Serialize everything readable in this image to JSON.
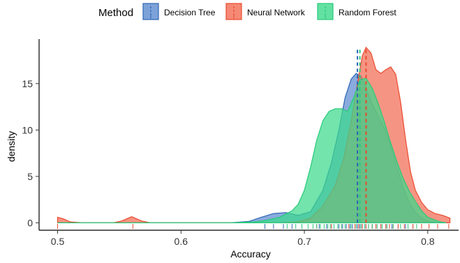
{
  "chart_data": {
    "type": "area",
    "subtype": "density",
    "title": "",
    "xlabel": "Accuracy",
    "ylabel": "density",
    "xlim": [
      0.485,
      0.825
    ],
    "ylim": [
      -0.8,
      19.8
    ],
    "x_ticks": [
      0.5,
      0.6,
      0.7,
      0.8
    ],
    "x_tick_labels": [
      "0.5",
      "0.6",
      "0.7",
      "0.8"
    ],
    "y_ticks": [
      0,
      5,
      10,
      15
    ],
    "y_tick_labels": [
      "0",
      "5",
      "10",
      "15"
    ],
    "grid": false,
    "legend": {
      "title": "Method",
      "position": "top",
      "entries": [
        "Decision Tree",
        "Neural Network",
        "Random Forest"
      ]
    },
    "series": [
      {
        "name": "Decision Tree",
        "fill": "#5b8bd0",
        "stroke": "#2f65b4",
        "mean": 0.743,
        "points": [
          [
            0.5,
            0
          ],
          [
            0.6,
            0
          ],
          [
            0.64,
            0
          ],
          [
            0.655,
            0.15
          ],
          [
            0.665,
            0.6
          ],
          [
            0.675,
            1.0
          ],
          [
            0.685,
            1.1
          ],
          [
            0.695,
            0.8
          ],
          [
            0.705,
            1.2
          ],
          [
            0.715,
            3.5
          ],
          [
            0.722,
            6.5
          ],
          [
            0.728,
            10.0
          ],
          [
            0.733,
            13.5
          ],
          [
            0.738,
            15.5
          ],
          [
            0.742,
            16.1
          ],
          [
            0.746,
            15.8
          ],
          [
            0.75,
            14.5
          ],
          [
            0.755,
            12.8
          ],
          [
            0.76,
            11.5
          ],
          [
            0.765,
            10.2
          ],
          [
            0.77,
            8.3
          ],
          [
            0.775,
            6.0
          ],
          [
            0.78,
            3.8
          ],
          [
            0.785,
            2.2
          ],
          [
            0.79,
            1.1
          ],
          [
            0.795,
            0.5
          ],
          [
            0.8,
            0.15
          ],
          [
            0.81,
            0
          ]
        ]
      },
      {
        "name": "Neural Network",
        "fill": "#f26b53",
        "stroke": "#ea4a2e",
        "mean": 0.75,
        "points": [
          [
            0.5,
            0.6
          ],
          [
            0.505,
            0.4
          ],
          [
            0.51,
            0.1
          ],
          [
            0.52,
            0
          ],
          [
            0.545,
            0
          ],
          [
            0.552,
            0.2
          ],
          [
            0.56,
            0.65
          ],
          [
            0.568,
            0.2
          ],
          [
            0.575,
            0
          ],
          [
            0.68,
            0
          ],
          [
            0.695,
            0.1
          ],
          [
            0.705,
            0.5
          ],
          [
            0.715,
            1.8
          ],
          [
            0.725,
            4.0
          ],
          [
            0.732,
            7.0
          ],
          [
            0.738,
            11.0
          ],
          [
            0.743,
            15.0
          ],
          [
            0.747,
            18.0
          ],
          [
            0.75,
            18.9
          ],
          [
            0.754,
            18.3
          ],
          [
            0.758,
            16.5
          ],
          [
            0.762,
            16.1
          ],
          [
            0.766,
            16.5
          ],
          [
            0.77,
            16.8
          ],
          [
            0.774,
            16.0
          ],
          [
            0.778,
            13.0
          ],
          [
            0.782,
            9.0
          ],
          [
            0.786,
            5.5
          ],
          [
            0.79,
            3.5
          ],
          [
            0.795,
            2.2
          ],
          [
            0.8,
            1.4
          ],
          [
            0.806,
            1.0
          ],
          [
            0.812,
            0.8
          ],
          [
            0.818,
            0.5
          ]
        ]
      },
      {
        "name": "Random Forest",
        "fill": "#3cd98c",
        "stroke": "#29c97a",
        "mean": 0.745,
        "points": [
          [
            0.5,
            0
          ],
          [
            0.64,
            0
          ],
          [
            0.66,
            0.1
          ],
          [
            0.67,
            0.3
          ],
          [
            0.68,
            0.6
          ],
          [
            0.69,
            1.3
          ],
          [
            0.695,
            2.0
          ],
          [
            0.7,
            3.5
          ],
          [
            0.705,
            6.0
          ],
          [
            0.71,
            8.9
          ],
          [
            0.715,
            11.0
          ],
          [
            0.72,
            12.0
          ],
          [
            0.725,
            12.3
          ],
          [
            0.73,
            12.3
          ],
          [
            0.735,
            12.0
          ],
          [
            0.74,
            13.5
          ],
          [
            0.745,
            15.4
          ],
          [
            0.75,
            15.6
          ],
          [
            0.755,
            14.5
          ],
          [
            0.76,
            12.8
          ],
          [
            0.765,
            10.8
          ],
          [
            0.77,
            8.6
          ],
          [
            0.775,
            6.6
          ],
          [
            0.78,
            4.8
          ],
          [
            0.785,
            3.4
          ],
          [
            0.79,
            2.3
          ],
          [
            0.795,
            1.3
          ],
          [
            0.8,
            0.6
          ],
          [
            0.81,
            0.1
          ],
          [
            0.815,
            0
          ]
        ]
      }
    ],
    "rug": [
      {
        "name": "Decision Tree",
        "color": "#2f65b4",
        "values": [
          0.668,
          0.675,
          0.683,
          0.69,
          0.712,
          0.718,
          0.722,
          0.728,
          0.731,
          0.734,
          0.737,
          0.739,
          0.741,
          0.743,
          0.745,
          0.747,
          0.749,
          0.752,
          0.755,
          0.758,
          0.762,
          0.766,
          0.771,
          0.776,
          0.782,
          0.788
        ]
      },
      {
        "name": "Neural Network",
        "color": "#ea4a2e",
        "values": [
          0.5,
          0.561,
          0.71,
          0.722,
          0.73,
          0.736,
          0.741,
          0.744,
          0.747,
          0.75,
          0.752,
          0.755,
          0.758,
          0.762,
          0.766,
          0.769,
          0.772,
          0.776,
          0.781,
          0.788,
          0.795,
          0.801,
          0.808,
          0.817
        ]
      },
      {
        "name": "Random Forest",
        "color": "#29c97a",
        "values": [
          0.686,
          0.693,
          0.698,
          0.703,
          0.707,
          0.71,
          0.713,
          0.716,
          0.719,
          0.721,
          0.724,
          0.727,
          0.73,
          0.733,
          0.738,
          0.742,
          0.746,
          0.749,
          0.752,
          0.755,
          0.759,
          0.763,
          0.767,
          0.772,
          0.778,
          0.784,
          0.791
        ]
      }
    ]
  }
}
